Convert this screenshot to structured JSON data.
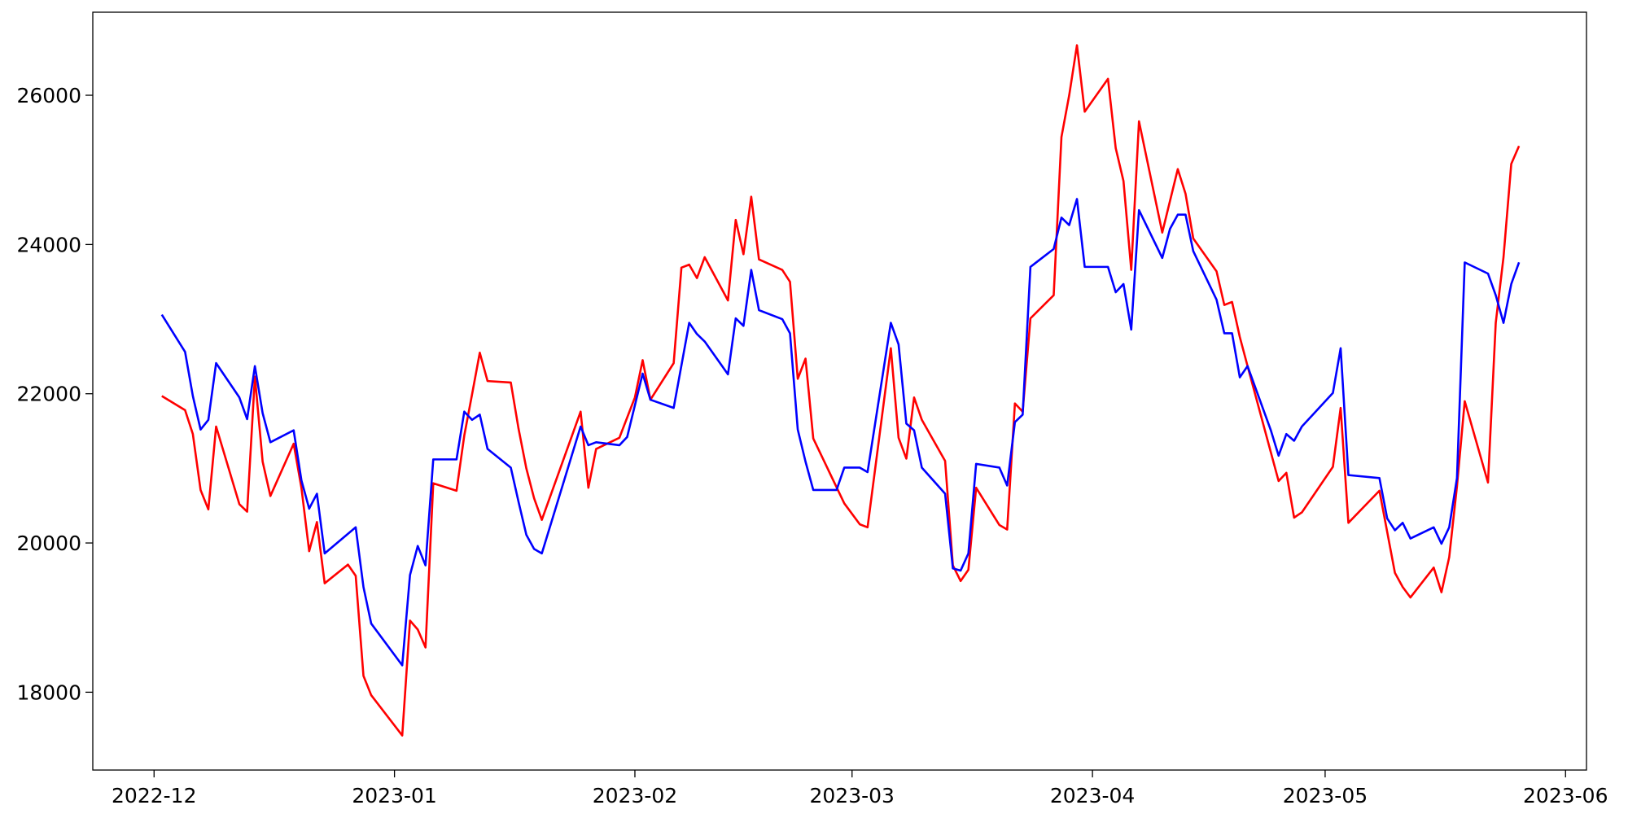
{
  "chart_data": {
    "type": "line",
    "xlim": [
      -7.9,
      184.7
    ],
    "xticks": [
      {
        "value": 0,
        "label": "2022-12"
      },
      {
        "value": 31,
        "label": "2023-01"
      },
      {
        "value": 62,
        "label": "2023-02"
      },
      {
        "value": 90,
        "label": "2023-03"
      },
      {
        "value": 121,
        "label": "2023-04"
      },
      {
        "value": 151,
        "label": "2023-05"
      },
      {
        "value": 182,
        "label": "2023-06"
      }
    ],
    "ylim": [
      16957,
      27113
    ],
    "yticks": [
      18000,
      20000,
      22000,
      24000,
      26000
    ],
    "grid": false,
    "series": [
      {
        "color": "#ff0000",
        "x": [
          1,
          4,
          5,
          6,
          7,
          8,
          11,
          12,
          13,
          14,
          15,
          18,
          19,
          20,
          21,
          22,
          25,
          26,
          27,
          28,
          32,
          33,
          34,
          35,
          36,
          39,
          40,
          41,
          42,
          43,
          46,
          47,
          48,
          49,
          50,
          55,
          56,
          57,
          60,
          62,
          63,
          64,
          67,
          68,
          69,
          70,
          71,
          74,
          75,
          76,
          77,
          78,
          81,
          82,
          83,
          84,
          85,
          89,
          91,
          92,
          95,
          96,
          97,
          98,
          99,
          102,
          103,
          104,
          105,
          106,
          109,
          110,
          111,
          112,
          113,
          116,
          117,
          118,
          119,
          120,
          123,
          124,
          125,
          126,
          127,
          130,
          132,
          133,
          134,
          137,
          138,
          139,
          140,
          141,
          145,
          146,
          147,
          148,
          152,
          153,
          154,
          158,
          160,
          161,
          162,
          165,
          166,
          167,
          168,
          169,
          172,
          173,
          174,
          175,
          176
        ],
        "values": [
          21970,
          21780,
          21460,
          20710,
          20450,
          21560,
          20520,
          20420,
          22230,
          21090,
          20630,
          21330,
          20740,
          19890,
          20280,
          19460,
          19710,
          19560,
          18220,
          17960,
          17420,
          18960,
          18840,
          18600,
          20800,
          20700,
          21440,
          21990,
          22550,
          22170,
          22150,
          21530,
          21000,
          20600,
          20310,
          21760,
          20740,
          21260,
          21410,
          21950,
          22450,
          21920,
          22410,
          23690,
          23730,
          23550,
          23830,
          23250,
          24330,
          23870,
          24640,
          23800,
          23660,
          23500,
          22200,
          22470,
          21400,
          20530,
          20250,
          20210,
          22610,
          21410,
          21130,
          21950,
          21650,
          21100,
          19700,
          19490,
          19640,
          20740,
          20240,
          20180,
          21870,
          21760,
          23010,
          23320,
          25440,
          26000,
          26670,
          25780,
          26220,
          25290,
          24850,
          23660,
          25650,
          24160,
          25010,
          24680,
          24080,
          23640,
          23190,
          23230,
          22760,
          22370,
          20830,
          20940,
          20340,
          20410,
          21020,
          21810,
          20270,
          20700,
          19600,
          19410,
          19270,
          19670,
          19340,
          19810,
          20760,
          21900,
          20810,
          22950,
          23830,
          25080,
          25320
        ]
      },
      {
        "color": "#0000ff",
        "x": [
          1,
          4,
          5,
          6,
          7,
          8,
          11,
          12,
          13,
          14,
          15,
          18,
          19,
          20,
          21,
          22,
          26,
          27,
          28,
          32,
          33,
          34,
          35,
          36,
          39,
          40,
          41,
          42,
          43,
          46,
          47,
          48,
          49,
          50,
          55,
          56,
          57,
          60,
          61,
          63,
          64,
          67,
          69,
          70,
          71,
          74,
          75,
          76,
          77,
          78,
          81,
          82,
          83,
          84,
          85,
          88,
          89,
          91,
          92,
          95,
          96,
          97,
          98,
          99,
          102,
          103,
          104,
          105,
          106,
          109,
          110,
          111,
          112,
          113,
          116,
          117,
          118,
          119,
          120,
          123,
          124,
          125,
          126,
          127,
          130,
          131,
          132,
          133,
          134,
          137,
          138,
          139,
          140,
          141,
          144,
          145,
          146,
          147,
          148,
          152,
          153,
          154,
          158,
          159,
          160,
          161,
          162,
          165,
          166,
          167,
          168,
          169,
          172,
          173,
          174,
          175,
          176
        ],
        "values": [
          23060,
          22560,
          21970,
          21520,
          21650,
          22410,
          21950,
          21660,
          22370,
          21740,
          21350,
          21510,
          20840,
          20460,
          20660,
          19860,
          20210,
          19410,
          18920,
          18360,
          19570,
          19960,
          19700,
          21120,
          21120,
          21760,
          21650,
          21720,
          21260,
          21010,
          20550,
          20110,
          19920,
          19860,
          21560,
          21310,
          21350,
          21310,
          21420,
          22270,
          21920,
          21810,
          22950,
          22800,
          22700,
          22260,
          23010,
          22910,
          23660,
          23120,
          23000,
          22810,
          21520,
          21090,
          20710,
          20710,
          21010,
          21010,
          20950,
          22950,
          22660,
          21600,
          21510,
          21010,
          20660,
          19660,
          19630,
          19860,
          21060,
          21010,
          20770,
          21620,
          21720,
          23700,
          23940,
          24360,
          24260,
          24610,
          23700,
          23700,
          23360,
          23470,
          22860,
          24460,
          23820,
          24210,
          24400,
          24400,
          23910,
          23260,
          22810,
          22810,
          22220,
          22370,
          21510,
          21170,
          21460,
          21370,
          21560,
          22010,
          22610,
          20910,
          20870,
          20330,
          20170,
          20270,
          20060,
          20210,
          19990,
          20210,
          20870,
          23760,
          23610,
          23320,
          22950,
          23470,
          23760
        ]
      }
    ]
  }
}
